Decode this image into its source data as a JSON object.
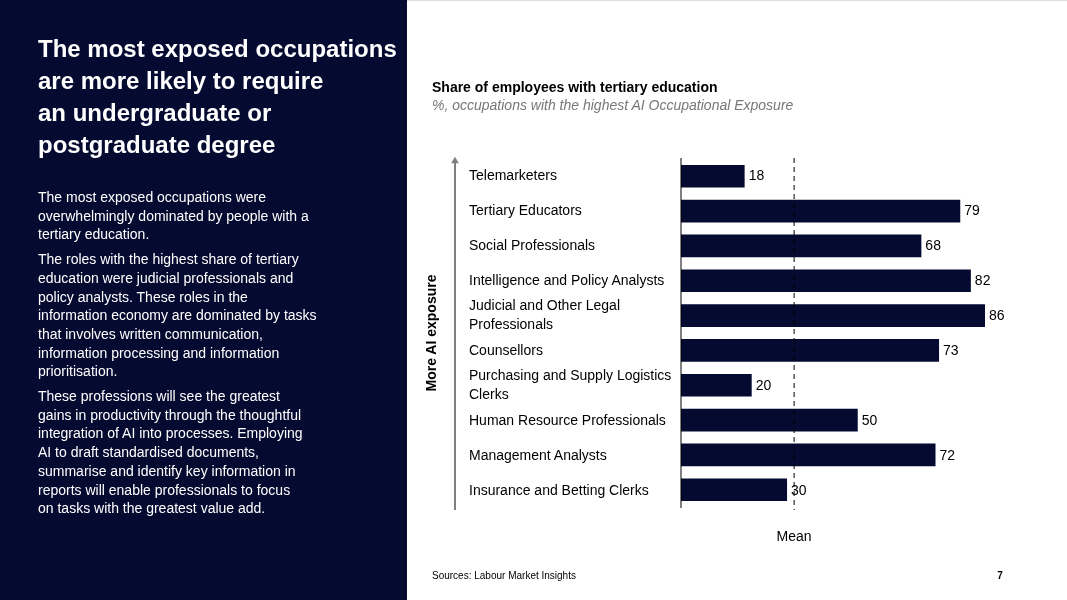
{
  "chart_data": {
    "type": "bar",
    "orientation": "horizontal",
    "title": "Share of employees with tertiary education",
    "subtitle": "%, occupations with the highest AI Occupational Exposure",
    "ylabel": "More AI exposure",
    "categories": [
      "Telemarketers",
      "Tertiary Educators",
      "Social Professionals",
      "Intelligence and Policy Analysts",
      "Judicial and Other Legal Professionals",
      "Counsellors",
      "Purchasing and Supply Logistics Clerks",
      "Human Resource Professionals",
      "Management Analysts",
      "Insurance and Betting Clerks"
    ],
    "values": [
      18,
      79,
      68,
      82,
      86,
      73,
      20,
      50,
      72,
      30
    ],
    "color": "#050a30",
    "data_labels": true,
    "ref_lines": [
      {
        "axis": "x",
        "value": 32,
        "label": "Mean",
        "line_style": "dashed",
        "color": "#000000"
      }
    ],
    "annotations": [
      "The most exposed occupations are more likely to require an undergraduate or postgraduate degree",
      "The most exposed occupations were overwhelmingly dominated by people with a tertiary education.",
      "The roles with the highest share of tertiary education were judicial professionals and policy analysts. These roles in the information economy are dominated by tasks that involves written communication, information processing and information prioritisation.",
      "These professions will see the greatest gains in productivity through the thoughtful integration of AI into processes. Employing AI to draft standardised documents, summarise and identify key information in reports will enable professionals to focus on tasks with the greatest value add.",
      "Sources: Labour Market Insights",
      "7"
    ]
  }
}
